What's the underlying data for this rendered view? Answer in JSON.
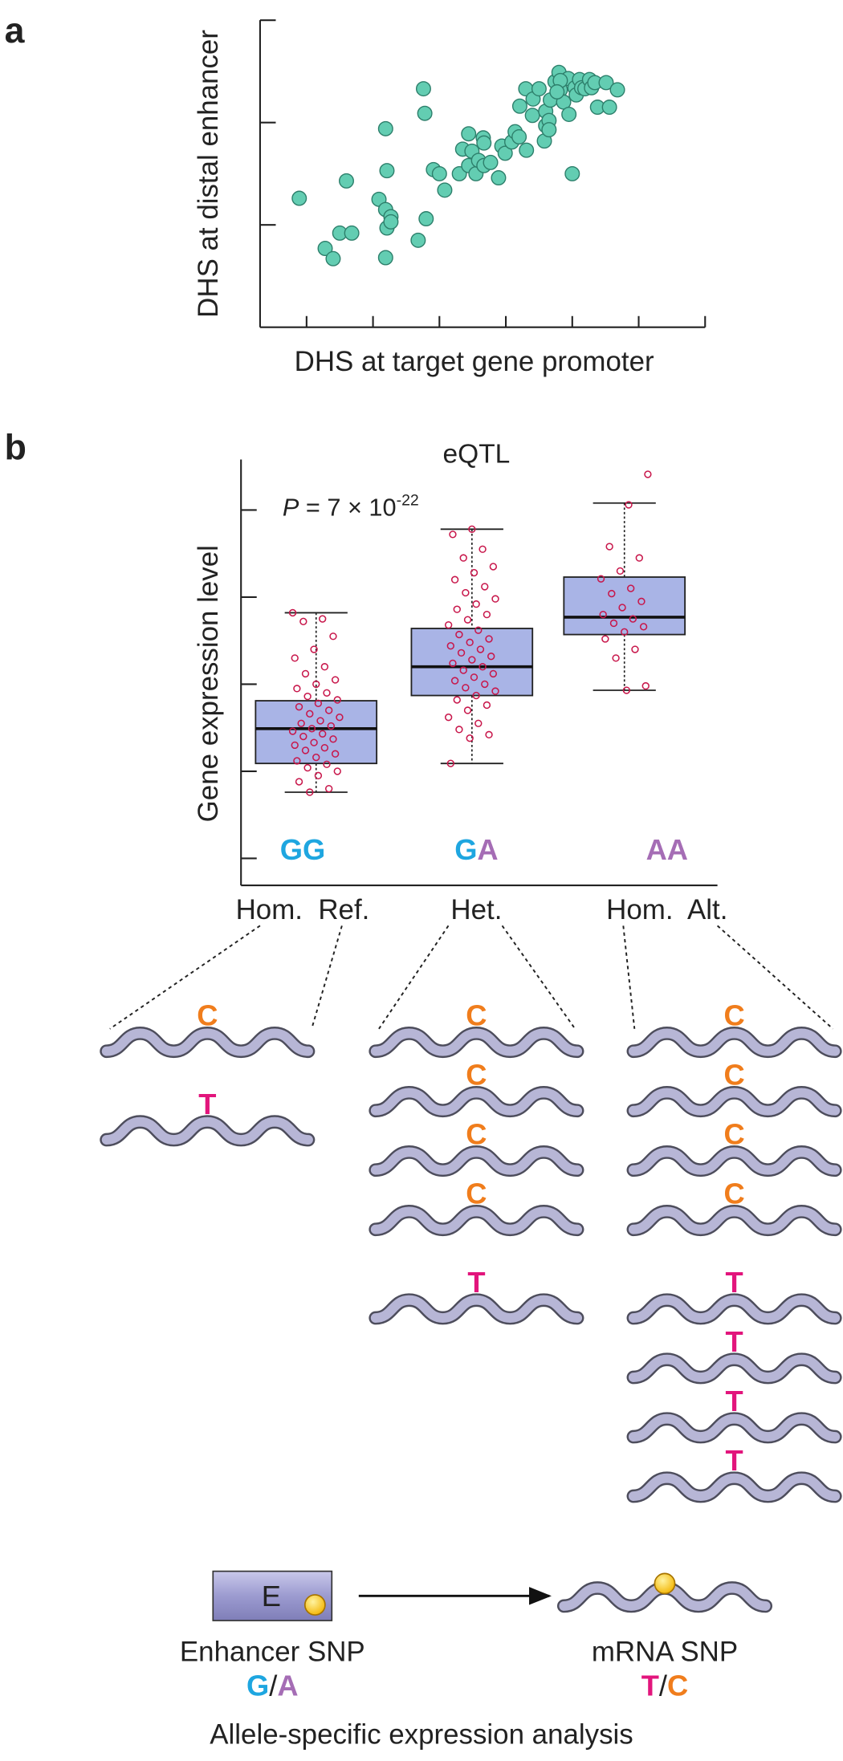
{
  "chart_data": [
    {
      "type": "scatter",
      "panel_label": "a",
      "x_label": "DHS at target gene promoter",
      "y_label": "DHS at distal enhancer",
      "x": [
        0.89,
        1.28,
        1.4,
        1.5,
        1.68,
        1.6,
        2.09,
        2.19,
        2.19,
        2.27,
        2.21,
        2.27,
        2.21,
        2.19,
        2.76,
        2.78,
        2.68,
        2.8,
        2.91,
        3.0,
        3.08,
        3.3,
        3.35,
        3.44,
        3.44,
        3.49,
        3.55,
        3.59,
        3.66,
        3.67,
        3.67,
        3.77,
        3.89,
        3.94,
        3.99,
        4.09,
        4.14,
        4.2,
        4.31,
        4.21,
        4.3,
        4.4,
        4.41,
        4.5,
        4.58,
        4.6,
        4.6,
        4.65,
        4.65,
        4.67,
        4.74,
        4.8,
        4.82,
        4.87,
        4.94,
        4.95,
        5.04,
        5.0,
        5.06,
        5.11,
        5.14,
        5.19,
        5.26,
        5.29,
        5.34,
        5.38,
        5.51,
        5.56,
        5.68,
        4.82,
        4.77
      ],
      "values": [
        1.26,
        0.77,
        0.67,
        0.92,
        0.92,
        1.43,
        1.25,
        1.15,
        0.68,
        1.08,
        0.97,
        1.03,
        1.53,
        1.94,
        2.33,
        2.09,
        0.85,
        1.06,
        1.54,
        1.5,
        1.34,
        1.5,
        1.74,
        1.58,
        1.89,
        1.72,
        1.5,
        1.63,
        1.85,
        1.8,
        1.58,
        1.61,
        1.46,
        1.77,
        1.7,
        1.81,
        1.91,
        1.86,
        1.73,
        2.16,
        2.33,
        2.07,
        2.23,
        2.33,
        1.82,
        1.97,
        2.11,
        2.02,
        1.93,
        2.22,
        2.4,
        2.49,
        2.32,
        2.2,
        2.43,
        2.08,
        2.34,
        1.5,
        2.27,
        2.42,
        2.34,
        2.33,
        2.42,
        2.34,
        2.39,
        2.15,
        2.39,
        2.15,
        2.32,
        2.41,
        2.3
      ],
      "xlim": [
        0.3,
        7
      ],
      "xticks": [
        1,
        2,
        3,
        4,
        5,
        6,
        7
      ],
      "ylim": [
        0,
        3
      ],
      "yticks": [
        1,
        2,
        3
      ],
      "color": "#63cdb2"
    },
    {
      "type": "box",
      "panel_label": "b",
      "title": "eQTL",
      "y_label": "Gene expression level",
      "annotation": {
        "p_symbol": "P",
        "p_text": " = 7 × 10",
        "p_exponent": "-22"
      },
      "categories": [
        "Hom.  Ref.",
        "Het.",
        "Hom.  Alt."
      ],
      "genotypes": [
        [
          "G",
          "G"
        ],
        [
          "G",
          "A"
        ],
        [
          "A",
          "A"
        ]
      ],
      "allele_colors": {
        "G": "#1ea6e0",
        "A": "#a56db5"
      },
      "boxes": [
        {
          "whisker_low": 0.76,
          "q1": 1.09,
          "median": 1.49,
          "q3": 1.81,
          "whisker_high": 2.82,
          "points": [
            2.82,
            2.75,
            2.72,
            2.55,
            2.4,
            2.3,
            2.2,
            2.12,
            2.05,
            2.0,
            1.95,
            1.9,
            1.86,
            1.82,
            1.78,
            1.74,
            1.7,
            1.66,
            1.62,
            1.58,
            1.55,
            1.52,
            1.49,
            1.46,
            1.43,
            1.4,
            1.37,
            1.33,
            1.3,
            1.27,
            1.24,
            1.2,
            1.16,
            1.12,
            1.08,
            1.04,
            1.0,
            0.95,
            0.88,
            0.8,
            0.76
          ]
        },
        {
          "whisker_low": 1.09,
          "q1": 1.87,
          "median": 2.2,
          "q3": 2.64,
          "whisker_high": 3.78,
          "points": [
            3.78,
            3.72,
            3.55,
            3.45,
            3.35,
            3.28,
            3.2,
            3.12,
            3.05,
            2.98,
            2.92,
            2.86,
            2.8,
            2.74,
            2.68,
            2.62,
            2.57,
            2.52,
            2.48,
            2.44,
            2.4,
            2.36,
            2.32,
            2.28,
            2.24,
            2.2,
            2.16,
            2.12,
            2.08,
            2.04,
            2.0,
            1.96,
            1.92,
            1.87,
            1.82,
            1.76,
            1.7,
            1.62,
            1.55,
            1.48,
            1.42,
            1.38,
            1.09
          ]
        },
        {
          "whisker_low": 1.93,
          "q1": 2.57,
          "median": 2.77,
          "q3": 3.23,
          "whisker_high": 4.08,
          "points": [
            4.41,
            4.06,
            3.58,
            3.45,
            3.3,
            3.21,
            3.1,
            3.04,
            2.95,
            2.88,
            2.8,
            2.75,
            2.7,
            2.66,
            2.6,
            2.52,
            2.4,
            2.3,
            1.98,
            1.93
          ]
        }
      ],
      "ylim": [
        -0.31,
        4.58
      ],
      "yticks": [
        0,
        1,
        2,
        3,
        4
      ],
      "box_color": "#a9b4e6",
      "point_color": "#c8174b"
    }
  ],
  "diagram": {
    "allele_colors": {
      "C": "#f07d1c",
      "T": "#e2157c",
      "G": "#1ea6e0",
      "A": "#a56db5"
    },
    "columns": [
      {
        "alleles": [
          "C",
          "T"
        ]
      },
      {
        "alleles": [
          "C",
          "C",
          "C",
          "C",
          "T"
        ]
      },
      {
        "alleles": [
          "C",
          "C",
          "C",
          "C",
          "T",
          "T",
          "T",
          "T"
        ]
      }
    ],
    "enhancer_box": "E",
    "enhancer_label": "Enhancer SNP",
    "enhancer_alleles": [
      "G",
      "/",
      "A"
    ],
    "mrna_label": "mRNA SNP",
    "mrna_alleles": [
      "T",
      "/",
      "C"
    ],
    "caption": "Allele-specific expression analysis"
  }
}
